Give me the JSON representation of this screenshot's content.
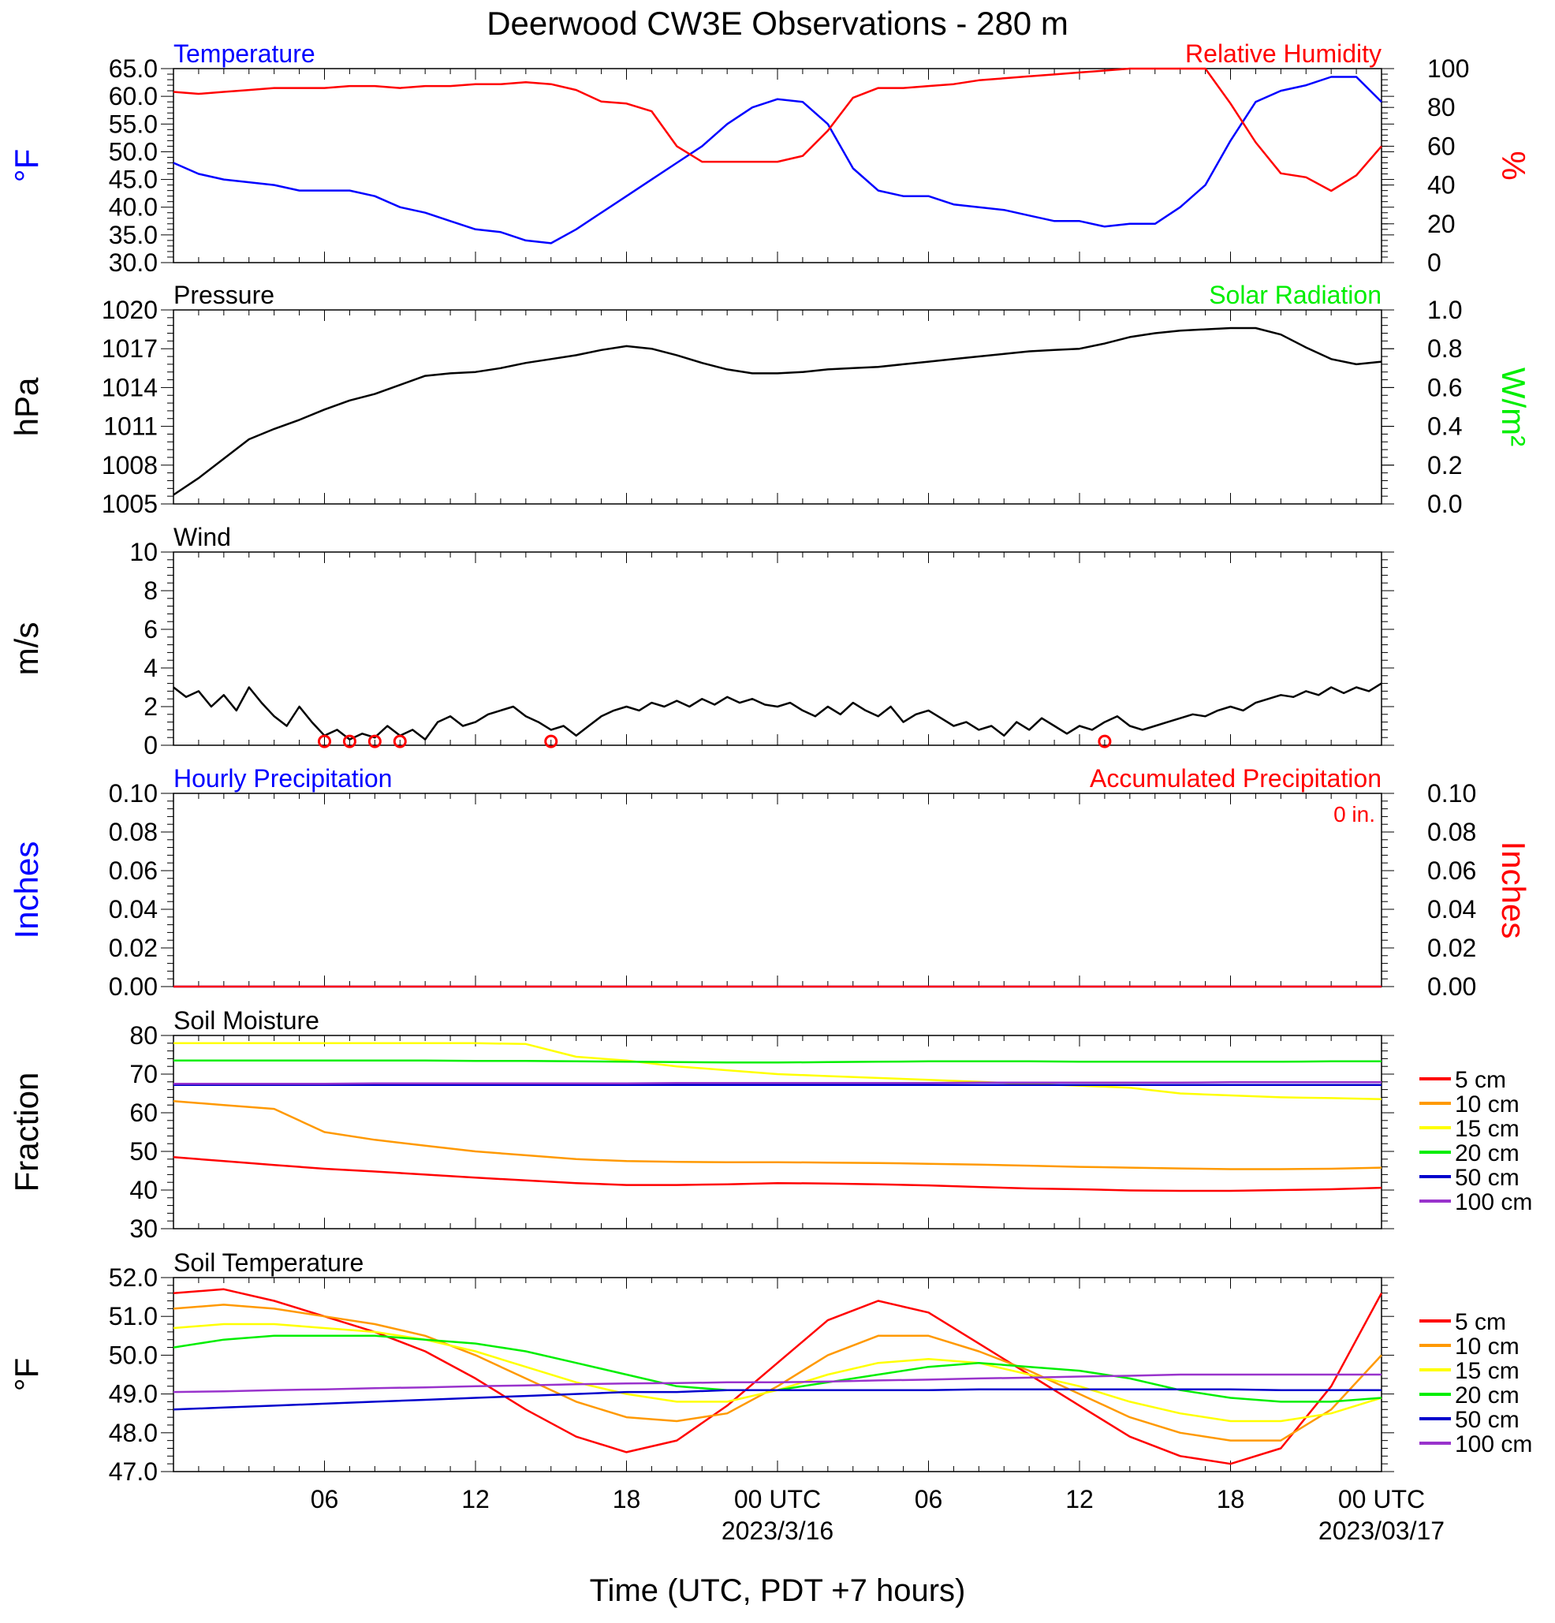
{
  "title": "Deerwood CW3E Observations - 280 m",
  "x_axis_title": "Time (UTC, PDT +7 hours)",
  "x_ticks": [
    {
      "hour": 6,
      "label": "06",
      "sub": ""
    },
    {
      "hour": 12,
      "label": "12",
      "sub": ""
    },
    {
      "hour": 18,
      "label": "18",
      "sub": ""
    },
    {
      "hour": 24,
      "label": "00 UTC",
      "sub": "2023/3/16"
    },
    {
      "hour": 30,
      "label": "06",
      "sub": ""
    },
    {
      "hour": 36,
      "label": "12",
      "sub": ""
    },
    {
      "hour": 42,
      "label": "18",
      "sub": ""
    },
    {
      "hour": 48,
      "label": "00 UTC",
      "sub": "2023/03/17"
    }
  ],
  "colors": {
    "blue": "#0000ff",
    "red": "#ff0000",
    "green": "#00ee00",
    "black": "#000000",
    "orange": "#ff9900",
    "yellow": "#ffff00",
    "navy": "#0000cc",
    "purple": "#9933cc"
  },
  "soil_legend": [
    "5 cm",
    "10 cm",
    "15 cm",
    "20 cm",
    "50 cm",
    "100 cm"
  ],
  "chart_data": [
    {
      "type": "line",
      "left_title": "Temperature",
      "right_title": "Relative Humidity",
      "ylabel": "°F",
      "y2label": "%",
      "ylim": [
        30,
        65
      ],
      "y_ticks": [
        "30.0",
        "35.0",
        "40.0",
        "45.0",
        "50.0",
        "55.0",
        "60.0",
        "65.0"
      ],
      "y2lim": [
        0,
        100
      ],
      "y2_ticks": [
        "0",
        "20",
        "40",
        "60",
        "80",
        "100"
      ],
      "x_hours": [
        0,
        1,
        2,
        3,
        4,
        5,
        6,
        7,
        8,
        9,
        10,
        11,
        12,
        13,
        14,
        15,
        16,
        17,
        18,
        19,
        20,
        21,
        22,
        23,
        24,
        25,
        26,
        27,
        28,
        29,
        30,
        31,
        32,
        33,
        34,
        35,
        36,
        37,
        38,
        39,
        40,
        41,
        42,
        43,
        44,
        45,
        46,
        47,
        48
      ],
      "series": [
        {
          "name": "Temperature",
          "color": "blue",
          "axis": "left",
          "values": [
            48,
            46,
            45,
            44.5,
            44,
            43,
            43,
            43,
            42,
            40,
            39,
            37.5,
            36,
            35.5,
            34,
            33.5,
            36,
            39,
            42,
            45,
            48,
            51,
            55,
            58,
            59.5,
            59,
            55,
            47,
            43,
            42,
            42,
            40.5,
            40,
            39.5,
            38.5,
            37.5,
            37.5,
            36.5,
            37,
            37,
            40,
            44,
            52,
            59,
            61,
            62,
            63.5,
            63.5,
            59
          ]
        },
        {
          "name": "Relative Humidity",
          "color": "red",
          "axis": "right",
          "values": [
            88,
            87,
            88,
            89,
            90,
            90,
            90,
            91,
            91,
            90,
            91,
            91,
            92,
            92,
            93,
            92,
            89,
            83,
            82,
            78,
            60,
            52,
            52,
            52,
            52,
            55,
            68,
            85,
            90,
            90,
            91,
            92,
            94,
            95,
            96,
            97,
            98,
            99,
            100,
            100,
            100,
            100,
            82,
            62,
            46,
            44,
            37,
            45,
            60
          ]
        }
      ]
    },
    {
      "type": "line",
      "left_title": "Pressure",
      "right_title": "Solar Radiation",
      "ylabel": "hPa",
      "y2label": "W/m²",
      "ylim": [
        1005,
        1020
      ],
      "y_ticks": [
        "1005",
        "1008",
        "1011",
        "1014",
        "1017",
        "1020"
      ],
      "y2lim": [
        0,
        1
      ],
      "y2_ticks": [
        "0.0",
        "0.2",
        "0.4",
        "0.6",
        "0.8",
        "1.0"
      ],
      "x_hours": [
        0,
        1,
        2,
        3,
        4,
        5,
        6,
        7,
        8,
        9,
        10,
        11,
        12,
        13,
        14,
        15,
        16,
        17,
        18,
        19,
        20,
        21,
        22,
        23,
        24,
        25,
        26,
        27,
        28,
        29,
        30,
        31,
        32,
        33,
        34,
        35,
        36,
        37,
        38,
        39,
        40,
        41,
        42,
        43,
        44,
        45,
        46,
        47,
        48
      ],
      "series": [
        {
          "name": "Pressure",
          "color": "black",
          "axis": "left",
          "values": [
            1005.7,
            1007,
            1008.5,
            1010,
            1010.8,
            1011.5,
            1012.3,
            1013,
            1013.5,
            1014.2,
            1014.9,
            1015.1,
            1015.2,
            1015.5,
            1015.9,
            1016.2,
            1016.5,
            1016.9,
            1017.2,
            1017,
            1016.5,
            1015.9,
            1015.4,
            1015.1,
            1015.1,
            1015.2,
            1015.4,
            1015.5,
            1015.6,
            1015.8,
            1016,
            1016.2,
            1016.4,
            1016.6,
            1016.8,
            1016.9,
            1017,
            1017.4,
            1017.9,
            1018.2,
            1018.4,
            1018.5,
            1018.6,
            1018.6,
            1018.1,
            1017.1,
            1016.2,
            1015.8,
            1016
          ]
        }
      ]
    },
    {
      "type": "line",
      "left_title": "Wind",
      "ylabel": "m/s",
      "ylim": [
        0,
        10
      ],
      "y_ticks": [
        "0",
        "2",
        "4",
        "6",
        "8",
        "10"
      ],
      "x_hours": [
        0,
        0.5,
        1,
        1.5,
        2,
        2.5,
        3,
        3.5,
        4,
        4.5,
        5,
        5.5,
        6,
        6.5,
        7,
        7.5,
        8,
        8.5,
        9,
        9.5,
        10,
        10.5,
        11,
        11.5,
        12,
        12.5,
        13,
        13.5,
        14,
        14.5,
        15,
        15.5,
        16,
        16.5,
        17,
        17.5,
        18,
        18.5,
        19,
        19.5,
        20,
        20.5,
        21,
        21.5,
        22,
        22.5,
        23,
        23.5,
        24,
        24.5,
        25,
        25.5,
        26,
        26.5,
        27,
        27.5,
        28,
        28.5,
        29,
        29.5,
        30,
        30.5,
        31,
        31.5,
        32,
        32.5,
        33,
        33.5,
        34,
        34.5,
        35,
        35.5,
        36,
        36.5,
        37,
        37.5,
        38,
        38.5,
        39,
        39.5,
        40,
        40.5,
        41,
        41.5,
        42,
        42.5,
        43,
        43.5,
        44,
        44.5,
        45,
        45.5,
        46,
        46.5,
        47,
        47.5,
        48
      ],
      "series": [
        {
          "name": "Wind speed",
          "color": "black",
          "axis": "left",
          "values": [
            3,
            2.5,
            2.8,
            2,
            2.6,
            1.8,
            3,
            2.2,
            1.5,
            1,
            2,
            1.2,
            0.5,
            0.8,
            0.3,
            0.6,
            0.4,
            1,
            0.5,
            0.8,
            0.3,
            1.2,
            1.5,
            1,
            1.2,
            1.6,
            1.8,
            2,
            1.5,
            1.2,
            0.8,
            1,
            0.5,
            1,
            1.5,
            1.8,
            2,
            1.8,
            2.2,
            2,
            2.3,
            2,
            2.4,
            2.1,
            2.5,
            2.2,
            2.4,
            2.1,
            2,
            2.2,
            1.8,
            1.5,
            2,
            1.6,
            2.2,
            1.8,
            1.5,
            2,
            1.2,
            1.6,
            1.8,
            1.4,
            1,
            1.2,
            0.8,
            1,
            0.5,
            1.2,
            0.8,
            1.4,
            1,
            0.6,
            1,
            0.8,
            1.2,
            1.5,
            1,
            0.8,
            1,
            1.2,
            1.4,
            1.6,
            1.5,
            1.8,
            2,
            1.8,
            2.2,
            2.4,
            2.6,
            2.5,
            2.8,
            2.6,
            3,
            2.7,
            3,
            2.8,
            3.2
          ]
        }
      ],
      "calm_hours": [
        6,
        7,
        8,
        9,
        15,
        37
      ]
    },
    {
      "type": "line",
      "left_title": "Hourly Precipitation",
      "right_title": "Accumulated Precipitation",
      "annotation": "0 in.",
      "ylabel": "Inches",
      "y2label": "Inches",
      "ylim": [
        0,
        0.1
      ],
      "y_ticks": [
        "0.00",
        "0.02",
        "0.04",
        "0.06",
        "0.08",
        "0.10"
      ],
      "y2lim": [
        0,
        0.1
      ],
      "y2_ticks": [
        "0.00",
        "0.02",
        "0.04",
        "0.06",
        "0.08",
        "0.10"
      ],
      "x_hours": [
        0,
        48
      ],
      "series": [
        {
          "name": "Hourly Precipitation",
          "color": "blue",
          "axis": "left",
          "values": [
            0,
            0
          ]
        },
        {
          "name": "Accumulated Precipitation",
          "color": "red",
          "axis": "right",
          "values": [
            0,
            0
          ]
        }
      ]
    },
    {
      "type": "line",
      "left_title": "Soil Moisture",
      "ylabel": "Fraction",
      "ylim": [
        30,
        80
      ],
      "y_ticks": [
        "30",
        "40",
        "50",
        "60",
        "70",
        "80"
      ],
      "x_hours": [
        0,
        2,
        4,
        6,
        8,
        10,
        12,
        14,
        16,
        18,
        20,
        22,
        24,
        26,
        28,
        30,
        32,
        34,
        36,
        38,
        40,
        42,
        44,
        46,
        48
      ],
      "series": [
        {
          "name": "5 cm",
          "color": "red",
          "values": [
            48.5,
            47.5,
            46.5,
            45.5,
            44.8,
            44,
            43.2,
            42.5,
            41.8,
            41.3,
            41.3,
            41.5,
            41.8,
            41.7,
            41.5,
            41.2,
            40.8,
            40.4,
            40.2,
            39.9,
            39.8,
            39.8,
            40,
            40.2,
            40.6
          ]
        },
        {
          "name": "10 cm",
          "color": "orange",
          "values": [
            63,
            62,
            61,
            55,
            53,
            51.5,
            50,
            49,
            48,
            47.5,
            47.3,
            47.2,
            47.2,
            47.1,
            47,
            46.8,
            46.6,
            46.3,
            46,
            45.8,
            45.6,
            45.4,
            45.4,
            45.5,
            45.8
          ]
        },
        {
          "name": "15 cm",
          "color": "yellow",
          "values": [
            78,
            78,
            78,
            78,
            78,
            78,
            78,
            77.8,
            74.5,
            73.5,
            72,
            71,
            70,
            69.5,
            69,
            68.5,
            68,
            67.5,
            67,
            66.5,
            65,
            64.5,
            64,
            63.8,
            63.5
          ]
        },
        {
          "name": "20 cm",
          "color": "green",
          "values": [
            73.5,
            73.5,
            73.5,
            73.5,
            73.5,
            73.5,
            73.4,
            73.4,
            73.3,
            73.2,
            73.1,
            73,
            73,
            73.1,
            73.2,
            73.3,
            73.3,
            73.3,
            73.2,
            73.2,
            73.2,
            73.2,
            73.2,
            73.3,
            73.3
          ]
        },
        {
          "name": "50 cm",
          "color": "navy",
          "values": [
            67.2,
            67.2,
            67.2,
            67.2,
            67.2,
            67.2,
            67.2,
            67.2,
            67.2,
            67.2,
            67.2,
            67.2,
            67.2,
            67.2,
            67.2,
            67.2,
            67.2,
            67.2,
            67.2,
            67.2,
            67.2,
            67.2,
            67.2,
            67.2,
            67.2
          ]
        },
        {
          "name": "100 cm",
          "color": "purple",
          "values": [
            67.5,
            67.5,
            67.5,
            67.5,
            67.6,
            67.6,
            67.6,
            67.6,
            67.6,
            67.6,
            67.7,
            67.7,
            67.7,
            67.7,
            67.7,
            67.7,
            67.8,
            67.8,
            67.8,
            67.8,
            67.8,
            67.9,
            67.9,
            67.9,
            67.9
          ]
        }
      ]
    },
    {
      "type": "line",
      "left_title": "Soil Temperature",
      "ylabel": "°F",
      "ylim": [
        47,
        52
      ],
      "y_ticks": [
        "47.0",
        "48.0",
        "49.0",
        "50.0",
        "51.0",
        "52.0"
      ],
      "x_hours": [
        0,
        2,
        4,
        6,
        8,
        10,
        12,
        14,
        16,
        18,
        20,
        22,
        24,
        26,
        28,
        30,
        32,
        34,
        36,
        38,
        40,
        42,
        44,
        46,
        48
      ],
      "series": [
        {
          "name": "5 cm",
          "color": "red",
          "values": [
            51.6,
            51.7,
            51.4,
            51,
            50.6,
            50.1,
            49.4,
            48.6,
            47.9,
            47.5,
            47.8,
            48.7,
            49.8,
            50.9,
            51.4,
            51.1,
            50.3,
            49.5,
            48.7,
            47.9,
            47.4,
            47.2,
            47.6,
            49.2,
            51.6
          ]
        },
        {
          "name": "10 cm",
          "color": "orange",
          "values": [
            51.2,
            51.3,
            51.2,
            51,
            50.8,
            50.5,
            50,
            49.4,
            48.8,
            48.4,
            48.3,
            48.5,
            49.2,
            50,
            50.5,
            50.5,
            50.1,
            49.6,
            49,
            48.4,
            48,
            47.8,
            47.8,
            48.6,
            50
          ]
        },
        {
          "name": "15 cm",
          "color": "yellow",
          "values": [
            50.7,
            50.8,
            50.8,
            50.7,
            50.6,
            50.4,
            50.1,
            49.7,
            49.3,
            49,
            48.8,
            48.8,
            49.1,
            49.5,
            49.8,
            49.9,
            49.8,
            49.5,
            49.2,
            48.8,
            48.5,
            48.3,
            48.3,
            48.5,
            48.9
          ]
        },
        {
          "name": "20 cm",
          "color": "green",
          "values": [
            50.2,
            50.4,
            50.5,
            50.5,
            50.5,
            50.4,
            50.3,
            50.1,
            49.8,
            49.5,
            49.2,
            49.1,
            49.1,
            49.3,
            49.5,
            49.7,
            49.8,
            49.7,
            49.6,
            49.4,
            49.1,
            48.9,
            48.8,
            48.8,
            48.9
          ]
        },
        {
          "name": "50 cm",
          "color": "navy",
          "values": [
            48.6,
            48.65,
            48.7,
            48.75,
            48.8,
            48.85,
            48.9,
            48.95,
            49,
            49.05,
            49.05,
            49.1,
            49.1,
            49.1,
            49.1,
            49.1,
            49.12,
            49.12,
            49.12,
            49.12,
            49.12,
            49.12,
            49.1,
            49.1,
            49.1
          ]
        },
        {
          "name": "100 cm",
          "color": "purple",
          "values": [
            49.05,
            49.07,
            49.1,
            49.12,
            49.15,
            49.17,
            49.2,
            49.22,
            49.25,
            49.27,
            49.28,
            49.3,
            49.3,
            49.32,
            49.35,
            49.37,
            49.4,
            49.42,
            49.45,
            49.47,
            49.5,
            49.5,
            49.5,
            49.5,
            49.5
          ]
        }
      ]
    }
  ]
}
